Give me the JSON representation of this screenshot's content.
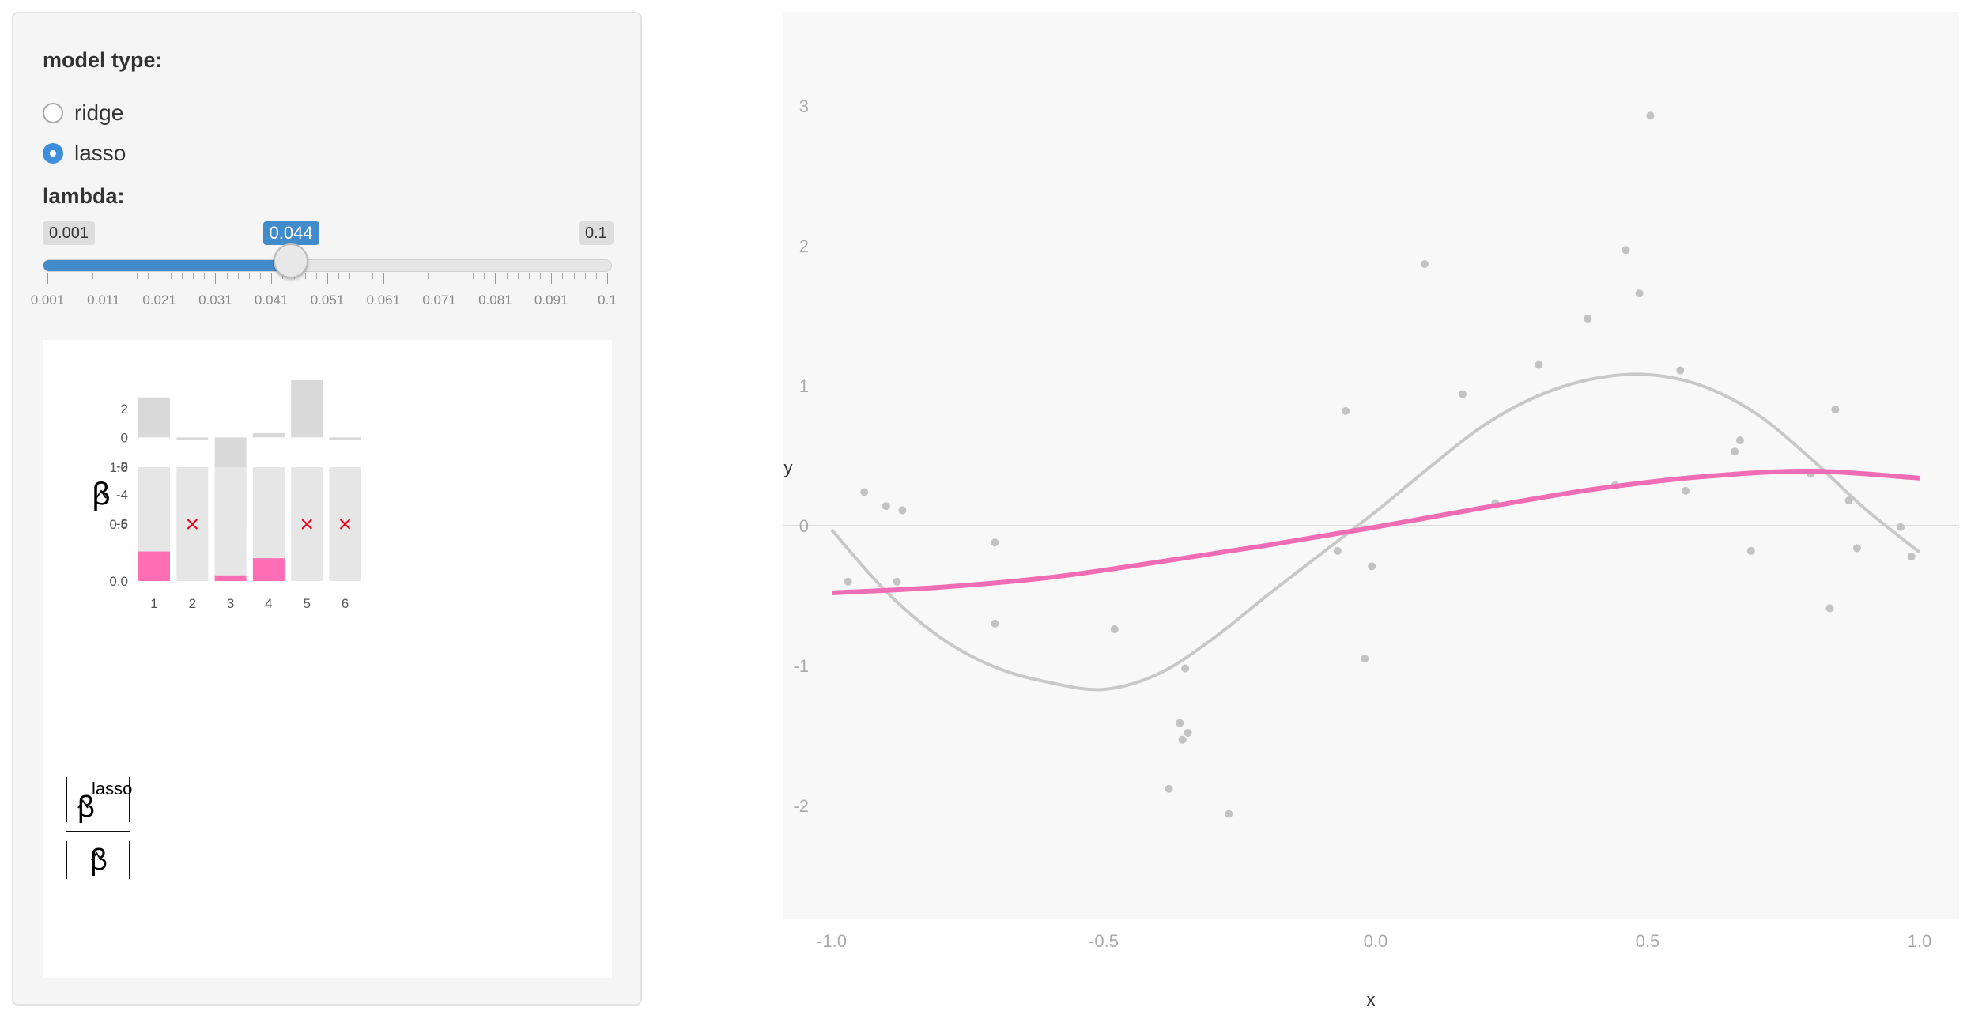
{
  "controls": {
    "model_type_label": "model type:",
    "options": [
      {
        "label": "ridge",
        "checked": false
      },
      {
        "label": "lasso",
        "checked": true
      }
    ],
    "lambda_label": "lambda:",
    "lambda": {
      "min": 0.001,
      "max": 0.1,
      "value": 0.044,
      "min_label": "0.001",
      "max_label": "0.1",
      "value_label": "0.044"
    },
    "tick_labels": [
      "0.001",
      "0.011",
      "0.021",
      "0.031",
      "0.041",
      "0.051",
      "0.061",
      "0.071",
      "0.081",
      "0.091",
      "0.1"
    ],
    "accent_color": "#428bca"
  },
  "coef_panel": {
    "beta_symbol": "β",
    "lasso_superscript": "lasso",
    "beta_chart": {
      "type": "bar",
      "categories": [
        "1",
        "2",
        "3",
        "4",
        "5",
        "6"
      ],
      "values": [
        2.8,
        -0.2,
        -6.3,
        0.3,
        4.0,
        -0.2
      ],
      "ylim": [
        -7,
        3.5
      ],
      "yticks": [
        "2",
        "0",
        "-2",
        "-4",
        "-6"
      ],
      "bar_color": "#d9d9d9"
    },
    "ratio_chart": {
      "type": "bar",
      "categories": [
        "1",
        "2",
        "3",
        "4",
        "5",
        "6"
      ],
      "values": [
        0.26,
        0,
        0.05,
        0.2,
        0,
        0
      ],
      "zeroed": [
        false,
        true,
        false,
        false,
        true,
        true
      ],
      "ylim": [
        0,
        1.0
      ],
      "yticks": [
        "1.0",
        "0.5",
        "0.0"
      ],
      "bar_color": "#ff6eb4",
      "bg_color": "#e6e6e6",
      "mark_color": "#e8001c"
    }
  },
  "chart_data": {
    "type": "scatter",
    "title": "",
    "xlabel": "x",
    "ylabel": "y",
    "xlim": [
      -1.07,
      1.07
    ],
    "ylim": [
      -2.7,
      3.75
    ],
    "xticks": [
      "-1.0",
      "-0.5",
      "0.0",
      "0.5",
      "1.0"
    ],
    "yticks": [
      "-2",
      "-1",
      "0",
      "1",
      "2",
      "3"
    ],
    "points": [
      [
        -0.97,
        -0.4
      ],
      [
        -0.94,
        0.24
      ],
      [
        -0.9,
        0.14
      ],
      [
        -0.88,
        -0.4
      ],
      [
        -0.87,
        0.11
      ],
      [
        -0.7,
        -0.7
      ],
      [
        -0.7,
        -0.12
      ],
      [
        -0.48,
        -0.74
      ],
      [
        -0.38,
        -1.88
      ],
      [
        -0.36,
        -1.41
      ],
      [
        -0.355,
        -1.53
      ],
      [
        -0.35,
        -1.02
      ],
      [
        -0.345,
        -1.48
      ],
      [
        -0.27,
        -2.06
      ],
      [
        -0.07,
        -0.18
      ],
      [
        -0.055,
        0.82
      ],
      [
        -0.02,
        -0.95
      ],
      [
        -0.007,
        -0.29
      ],
      [
        0.09,
        1.87
      ],
      [
        0.16,
        0.94
      ],
      [
        0.22,
        0.16
      ],
      [
        0.3,
        1.15
      ],
      [
        0.39,
        1.48
      ],
      [
        0.44,
        0.29
      ],
      [
        0.46,
        1.97
      ],
      [
        0.485,
        1.66
      ],
      [
        0.505,
        2.93
      ],
      [
        0.56,
        1.11
      ],
      [
        0.57,
        0.25
      ],
      [
        0.66,
        0.53
      ],
      [
        0.67,
        0.61
      ],
      [
        0.69,
        -0.18
      ],
      [
        0.8,
        0.37
      ],
      [
        0.835,
        -0.59
      ],
      [
        0.845,
        0.83
      ],
      [
        0.87,
        0.18
      ],
      [
        0.885,
        -0.16
      ],
      [
        0.965,
        -0.01
      ],
      [
        0.985,
        -0.22
      ]
    ],
    "series": [
      {
        "name": "",
        "color": "#c8c8c8",
        "points": [
          [
            -1.0,
            -0.03
          ],
          [
            -0.9,
            -0.47
          ],
          [
            -0.8,
            -0.8
          ],
          [
            -0.7,
            -1.01
          ],
          [
            -0.6,
            -1.12
          ],
          [
            -0.5,
            -1.17
          ],
          [
            -0.4,
            -1.06
          ],
          [
            -0.3,
            -0.81
          ],
          [
            -0.2,
            -0.5
          ],
          [
            -0.1,
            -0.2
          ],
          [
            0.0,
            0.1
          ],
          [
            0.1,
            0.42
          ],
          [
            0.2,
            0.72
          ],
          [
            0.3,
            0.93
          ],
          [
            0.4,
            1.05
          ],
          [
            0.5,
            1.08
          ],
          [
            0.6,
            1.0
          ],
          [
            0.7,
            0.8
          ],
          [
            0.8,
            0.48
          ],
          [
            0.9,
            0.12
          ],
          [
            1.0,
            -0.19
          ]
        ]
      },
      {
        "name": "",
        "color": "#f06cb4",
        "points": [
          [
            -1.0,
            -0.48
          ],
          [
            -0.8,
            -0.44
          ],
          [
            -0.6,
            -0.37
          ],
          [
            -0.4,
            -0.26
          ],
          [
            -0.2,
            -0.14
          ],
          [
            0.0,
            -0.01
          ],
          [
            0.2,
            0.13
          ],
          [
            0.4,
            0.26
          ],
          [
            0.6,
            0.35
          ],
          [
            0.8,
            0.39
          ],
          [
            1.0,
            0.34
          ]
        ]
      }
    ],
    "grid": false,
    "background": "#f8f8f8"
  }
}
